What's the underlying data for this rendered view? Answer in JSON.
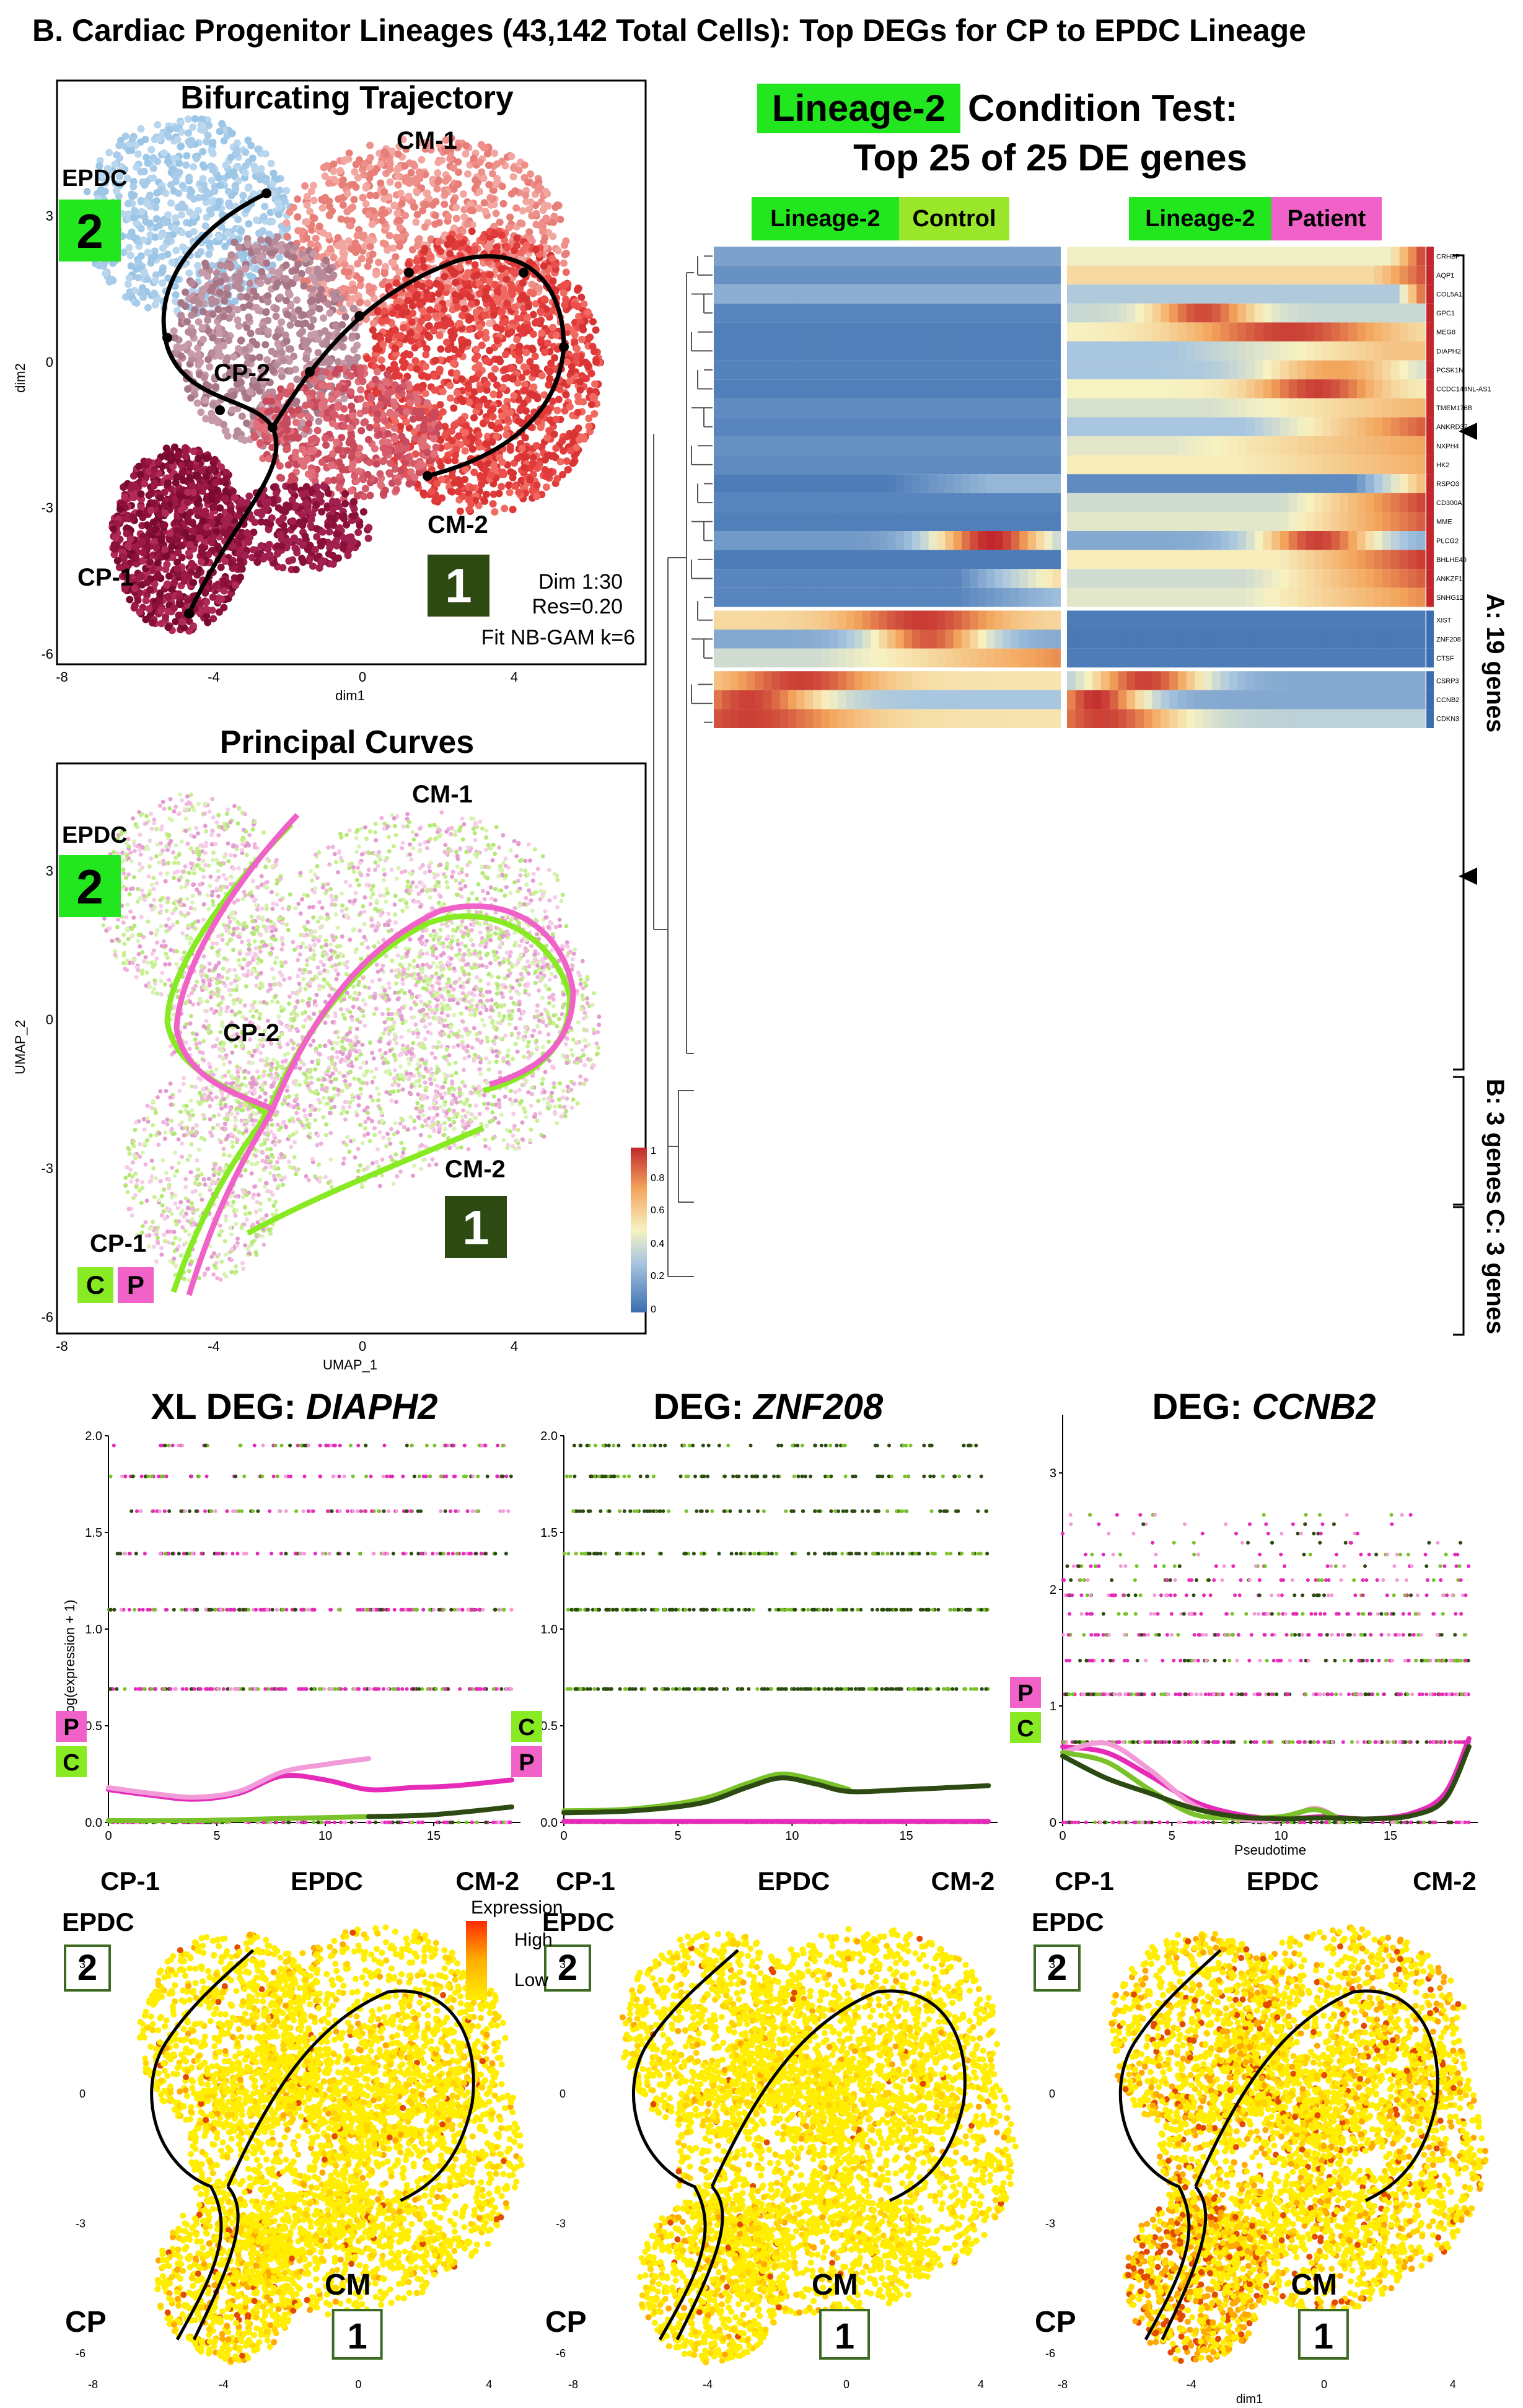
{
  "title": "B. Cardiac Progenitor Lineages (43,142 Total Cells): Top DEGs for CP to EPDC Lineage",
  "colors": {
    "lineage_green": "#22e61e",
    "control_green": "#9ae62a",
    "patient_pink": "#f062c8",
    "dark_green_box": "#2d4a12",
    "cm_red": "#e23a3a",
    "cm_light": "#ee8f8a",
    "epdc_blue": "#9cc6e6",
    "cp1_dark": "#8a1038",
    "heat_low": "#3b6db0",
    "heat_mid": "#f7f2c2",
    "heat_high": "#c1272d"
  },
  "panel_traj": {
    "title": "Bifurcating Trajectory",
    "xlabel": "dim1",
    "ylabel": "dim2",
    "xticks": [
      "-8",
      "-4",
      "0",
      "4"
    ],
    "yticks": [
      "3",
      "0",
      "-3",
      "-6"
    ],
    "labels": {
      "epdc": "EPDC",
      "cm1": "CM-1",
      "cp2": "CP-2",
      "cp1": "CP-1",
      "cm2": "CM-2"
    },
    "box2": "2",
    "box1": "1",
    "params": [
      "Dim 1:30",
      "Res=0.20",
      "Fit NB-GAM k=6"
    ]
  },
  "panel_pc": {
    "title": "Principal Curves",
    "xlabel": "UMAP_1",
    "ylabel": "UMAP_2",
    "xticks": [
      "-8",
      "-4",
      "0",
      "4"
    ],
    "yticks": [
      "3",
      "0",
      "-3",
      "-6"
    ],
    "labels": {
      "epdc": "EPDC",
      "cm1": "CM-1",
      "cp2": "CP-2",
      "cp1": "CP-1",
      "cm2": "CM-2"
    },
    "box2": "2",
    "box1": "1",
    "c": "C",
    "p": "P"
  },
  "heatmap": {
    "title_lineage": "Lineage-2",
    "title_rest": " Condition Test:",
    "title_line2": "Top 25 of 25 DE genes",
    "head_left": {
      "lineage": "Lineage-2",
      "cond": "Control"
    },
    "head_right": {
      "lineage": "Lineage-2",
      "cond": "Patient"
    },
    "legend_ticks": [
      "1",
      "0.8",
      "0.6",
      "0.4",
      "0.2",
      "0"
    ],
    "group_labels": [
      "A: 19 genes",
      "B: 3 genes",
      "C: 3 genes"
    ],
    "marked_genes": [
      "MEG8",
      "MME"
    ]
  },
  "chart_data": [
    {
      "type": "heatmap",
      "title": "Lineage-2 Condition Test: Top 25 of 25 DE genes",
      "rows": [
        "CRHBP",
        "AQP1",
        "COL5A1",
        "GPC1",
        "MEG8",
        "DIAPH2",
        "PCSK1N",
        "CCDC144NL-AS1",
        "TMEM176B",
        "ANKRD37",
        "NXPH4",
        "HK2",
        "RSPO3",
        "CD300A",
        "MME",
        "PLCG2",
        "BHLHE40",
        "ANKZF1",
        "SNHG12",
        "XIST",
        "ZNF208",
        "CTSF",
        "CSRP3",
        "CCNB2",
        "CDKN3"
      ],
      "columns": [
        "Lineage-2 Control (pseudotime bins)",
        "Lineage-2 Patient (pseudotime bins)"
      ],
      "scale": [
        0,
        1
      ],
      "groups": [
        {
          "name": "A",
          "size": 19
        },
        {
          "name": "B",
          "size": 3
        },
        {
          "name": "C",
          "size": 3
        }
      ]
    },
    {
      "type": "scatter",
      "title": "XL DEG: DIAPH2",
      "ylabel": "Log(expression + 1)",
      "xlim": [
        0,
        19
      ],
      "ylim": [
        0,
        2.0
      ],
      "xticks": [
        0,
        5,
        10,
        15
      ],
      "yticks": [
        0.0,
        0.5,
        1.0,
        1.5,
        2.0
      ],
      "point_levels": [
        0.69,
        1.1,
        1.39,
        1.61,
        1.79,
        1.95
      ],
      "series": [
        {
          "name": "Patient",
          "x": [
            0,
            2,
            4,
            6,
            8,
            10,
            12,
            14,
            16,
            18.6
          ],
          "y": [
            0.17,
            0.14,
            0.12,
            0.15,
            0.24,
            0.22,
            0.17,
            0.18,
            0.19,
            0.22
          ]
        },
        {
          "name": "Patient (light)",
          "x": [
            0,
            2,
            4,
            6,
            8,
            10,
            12
          ],
          "y": [
            0.18,
            0.15,
            0.13,
            0.16,
            0.26,
            0.3,
            0.33
          ]
        },
        {
          "name": "Control",
          "x": [
            0,
            4,
            8,
            12
          ],
          "y": [
            0.01,
            0.01,
            0.02,
            0.03
          ]
        },
        {
          "name": "Control (dark)",
          "x": [
            12,
            15,
            18.6
          ],
          "y": [
            0.03,
            0.04,
            0.08
          ]
        }
      ]
    },
    {
      "type": "scatter",
      "title": "DEG: ZNF208",
      "xlim": [
        0,
        19
      ],
      "ylim": [
        0,
        2.0
      ],
      "xticks": [
        0,
        5,
        10,
        15
      ],
      "yticks": [
        0.0,
        0.5,
        1.0,
        1.5,
        2.0
      ],
      "point_levels": [
        0.69,
        1.1,
        1.39,
        1.61,
        1.79,
        1.95
      ],
      "series": [
        {
          "name": "Control",
          "x": [
            0,
            3,
            6,
            8,
            9.5,
            11,
            12.5
          ],
          "y": [
            0.06,
            0.07,
            0.12,
            0.2,
            0.25,
            0.22,
            0.17
          ]
        },
        {
          "name": "Control (dark)",
          "x": [
            0,
            3,
            6,
            8,
            9.5,
            11,
            12.5,
            15,
            18.6
          ],
          "y": [
            0.05,
            0.06,
            0.1,
            0.18,
            0.23,
            0.2,
            0.16,
            0.17,
            0.19
          ]
        },
        {
          "name": "Patient",
          "x": [
            0,
            6,
            12,
            18.6
          ],
          "y": [
            0.005,
            0.005,
            0.005,
            0.005
          ]
        }
      ]
    },
    {
      "type": "scatter",
      "title": "DEG: CCNB2",
      "xlabel": "Pseudotime",
      "xlim": [
        0,
        19
      ],
      "ylim": [
        0,
        3.5
      ],
      "xticks": [
        0,
        5,
        10,
        15
      ],
      "yticks": [
        0,
        1,
        2,
        3
      ],
      "point_levels": [
        0.69,
        1.1,
        1.39,
        1.61,
        1.79,
        1.95,
        2.08,
        2.2,
        2.3,
        2.4,
        2.48,
        2.56,
        2.64
      ],
      "series": [
        {
          "name": "Patient",
          "x": [
            0,
            2,
            4,
            6,
            8,
            10,
            12,
            14,
            16,
            17.5,
            18.6
          ],
          "y": [
            0.65,
            0.6,
            0.4,
            0.18,
            0.07,
            0.03,
            0.05,
            0.03,
            0.08,
            0.25,
            0.72
          ]
        },
        {
          "name": "Patient (light)",
          "x": [
            0,
            2,
            4,
            6,
            8,
            10,
            11.5,
            12.5
          ],
          "y": [
            0.6,
            0.68,
            0.45,
            0.15,
            0.03,
            0.03,
            0.12,
            0.05
          ]
        },
        {
          "name": "Control",
          "x": [
            0,
            2,
            4,
            6,
            8,
            10,
            11.5,
            12.5
          ],
          "y": [
            0.6,
            0.52,
            0.28,
            0.07,
            0.04,
            0.05,
            0.11,
            0.05
          ]
        },
        {
          "name": "Control (dark)",
          "x": [
            0,
            2,
            4,
            6,
            8,
            10,
            12,
            14,
            16,
            17.5,
            18.6
          ],
          "y": [
            0.57,
            0.38,
            0.25,
            0.12,
            0.05,
            0.03,
            0.04,
            0.03,
            0.06,
            0.2,
            0.65
          ]
        }
      ]
    }
  ],
  "line_panels": [
    {
      "title_pre": "XL DEG: ",
      "gene": "DIAPH2",
      "ylabel": "Log(expression + 1)",
      "xlabel": "",
      "yticks": [
        "0.0",
        "0.5",
        "1.0",
        "1.5",
        "2.0"
      ],
      "xticks": [
        "0",
        "5",
        "10",
        "15"
      ],
      "side_labels": [
        "P",
        "C"
      ],
      "stages": [
        "CP-1",
        "EPDC",
        "CM-2"
      ]
    },
    {
      "title_pre": "DEG: ",
      "gene": "ZNF208",
      "ylabel": "",
      "xlabel": "",
      "yticks": [
        "0.0",
        "0.5",
        "1.0",
        "1.5",
        "2.0"
      ],
      "xticks": [
        "0",
        "5",
        "10",
        "15"
      ],
      "side_labels": [
        "C",
        "P"
      ],
      "stages": [
        "CP-1",
        "EPDC",
        "CM-2"
      ]
    },
    {
      "title_pre": "DEG: ",
      "gene": "CCNB2",
      "ylabel": "",
      "xlabel": "Pseudotime",
      "yticks": [
        "0",
        "1",
        "2",
        "3"
      ],
      "xticks": [
        "0",
        "5",
        "10",
        "15"
      ],
      "side_labels": [
        "P",
        "C"
      ],
      "stages": [
        "CP-1",
        "EPDC",
        "CM-2"
      ]
    }
  ],
  "expr_maps": [
    {
      "epdc": "EPDC",
      "box2": "2",
      "cp": "CP",
      "cm": "CM",
      "box1": "1",
      "xticks": [
        "-8",
        "-4",
        "0",
        "4"
      ],
      "yticks": [
        "3",
        "0",
        "-3",
        "-6"
      ],
      "xlabel": ""
    },
    {
      "epdc": "EPDC",
      "box2": "2",
      "cp": "CP",
      "cm": "CM",
      "box1": "1",
      "xticks": [
        "-8",
        "-4",
        "0",
        "4"
      ],
      "yticks": [
        "3",
        "0",
        "-3",
        "-6"
      ],
      "xlabel": ""
    },
    {
      "epdc": "EPDC",
      "box2": "2",
      "cp": "CP",
      "cm": "CM",
      "box1": "1",
      "xticks": [
        "-8",
        "-4",
        "0",
        "4"
      ],
      "yticks": [
        "3",
        "0",
        "-3",
        "-6"
      ],
      "xlabel": "dim1"
    }
  ],
  "expr_legend": {
    "title": "Expression",
    "high": "High",
    "low": "Low"
  }
}
